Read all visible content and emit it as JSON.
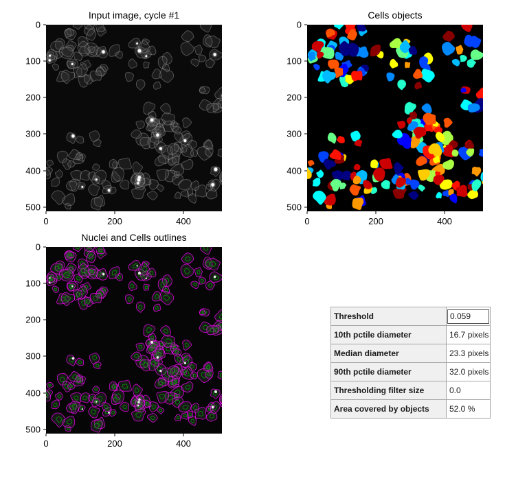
{
  "window": {
    "background": "#ffffff"
  },
  "panels": [
    {
      "title": "Input image, cycle #1",
      "yticks": [
        "0",
        "100",
        "200",
        "300",
        "400",
        "500"
      ],
      "xticks": [
        "0",
        "200",
        "400"
      ]
    },
    {
      "title": "Cells objects",
      "yticks": [
        "0",
        "100",
        "200",
        "300",
        "400",
        "500"
      ],
      "xticks": [
        "0",
        "200",
        "400"
      ]
    },
    {
      "title": "Nuclei and Cells outlines",
      "yticks": [
        "0",
        "100",
        "200",
        "300",
        "400",
        "500"
      ],
      "xticks": [
        "0",
        "200",
        "400"
      ]
    }
  ],
  "table": {
    "rows": [
      {
        "label": "Threshold",
        "value": "0.059"
      },
      {
        "label": "10th pctile diameter",
        "value": "16.7 pixels"
      },
      {
        "label": "Median diameter",
        "value": "23.3 pixels"
      },
      {
        "label": "90th pctile diameter",
        "value": "32.0 pixels"
      },
      {
        "label": "Thresholding filter size",
        "value": "0.0"
      },
      {
        "label": "Area covered by objects",
        "value": "52.0 %"
      }
    ]
  },
  "colors": {
    "cell_outline": "#ff00ff",
    "nucleus_outline": "#00b400",
    "table_label_bg": "#f0f0f0",
    "table_border": "#a6a6a6",
    "label_palette": [
      "#000080",
      "#0000ff",
      "#0044ff",
      "#0088ff",
      "#00bbff",
      "#00ffff",
      "#22ffcc",
      "#66ff88",
      "#aaff44",
      "#ffff00",
      "#ffcc00",
      "#ff9900",
      "#ff5500",
      "#ff1100",
      "#cc0000",
      "#880000"
    ]
  },
  "chart_data": [
    {
      "type": "heatmap",
      "title": "Input image, cycle #1",
      "xlabel": "",
      "ylabel": "",
      "xlim": [
        0,
        512
      ],
      "ylim": [
        512,
        0
      ],
      "xticks": [
        0,
        200,
        400
      ],
      "yticks": [
        0,
        100,
        200,
        300,
        400,
        500
      ],
      "colormap": "gray",
      "description": "Grayscale fluorescence microscopy image: faint cell membrane outlines clustered top-left and across the bottom half, with ~20 small bright white nuclei spots; dark empty region in mid-left/center."
    },
    {
      "type": "heatmap",
      "title": "Cells objects",
      "xlabel": "",
      "ylabel": "",
      "xlim": [
        0,
        512
      ],
      "ylim": [
        512,
        0
      ],
      "xticks": [
        0,
        200,
        400
      ],
      "yticks": [
        0,
        100,
        200,
        300,
        400,
        500
      ],
      "colormap": "jet",
      "description": "Segmented cell objects as randomly colored labels (blue, cyan, yellow, orange, red, dark red) on black; dense cluster top-left and large dense mass over bottom-right half."
    },
    {
      "type": "heatmap",
      "title": "Nuclei and Cells outlines",
      "xlabel": "",
      "ylabel": "",
      "xlim": [
        0,
        512
      ],
      "ylim": [
        512,
        0
      ],
      "xticks": [
        0,
        200,
        400
      ],
      "yticks": [
        0,
        100,
        200,
        300,
        400,
        500
      ],
      "description": "Input image overlaid with magenta cell boundary outlines and small green nuclei outlines inside each cell."
    },
    {
      "type": "table",
      "rows": [
        [
          "Threshold",
          "0.059"
        ],
        [
          "10th pctile diameter",
          "16.7 pixels"
        ],
        [
          "Median diameter",
          "23.3 pixels"
        ],
        [
          "90th pctile diameter",
          "32.0 pixels"
        ],
        [
          "Thresholding filter size",
          "0.0"
        ],
        [
          "Area covered by objects",
          "52.0 %"
        ]
      ]
    }
  ]
}
